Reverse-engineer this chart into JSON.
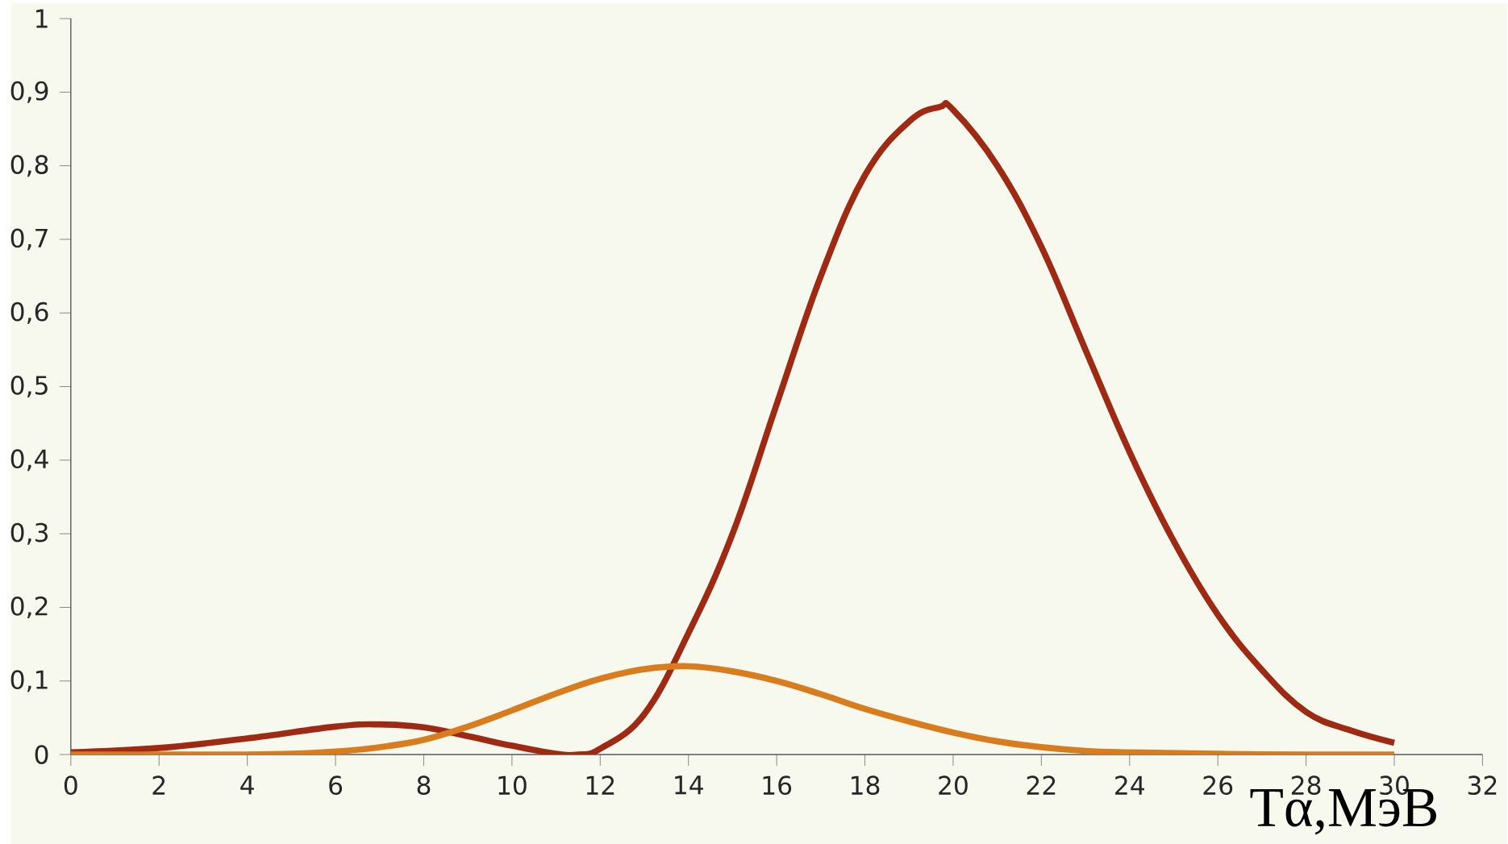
{
  "chart_data": {
    "type": "line",
    "xlabel": "Tα,МэВ",
    "xlim": [
      0,
      32
    ],
    "xticks": [
      0,
      2,
      4,
      6,
      8,
      10,
      12,
      14,
      16,
      18,
      20,
      22,
      24,
      26,
      28,
      30,
      32
    ],
    "ylim": [
      0,
      1
    ],
    "yticks": [
      0,
      {
        "value": 0.1,
        "label": "0,1"
      },
      {
        "value": 0.2,
        "label": "0,2"
      },
      {
        "value": 0.3,
        "label": "0,3"
      },
      {
        "value": 0.4,
        "label": "0,4"
      },
      {
        "value": 0.5,
        "label": "0,5"
      },
      {
        "value": 0.6,
        "label": "0,6"
      },
      {
        "value": 0.7,
        "label": "0,7"
      },
      {
        "value": 0.8,
        "label": "0,8"
      },
      {
        "value": 0.9,
        "label": "0,9"
      },
      1
    ],
    "grid": false,
    "marker": "none",
    "line_style": "solid",
    "series": [
      {
        "color": "#9e2a14",
        "x": [
          0,
          2,
          4,
          6,
          7,
          8,
          9,
          10,
          11,
          11.5,
          12,
          13,
          14,
          15,
          16,
          17,
          18,
          19,
          19.7,
          20,
          21,
          22,
          23,
          24,
          25,
          26,
          27,
          28,
          29,
          30
        ],
        "values": [
          0.003,
          0.009,
          0.022,
          0.038,
          0.041,
          0.037,
          0.025,
          0.012,
          0.001,
          0.0,
          0.008,
          0.055,
          0.165,
          0.3,
          0.476,
          0.65,
          0.787,
          0.86,
          0.88,
          0.876,
          0.8,
          0.69,
          0.55,
          0.411,
          0.29,
          0.19,
          0.115,
          0.058,
          0.033,
          0.016
        ]
      },
      {
        "color": "#d97c1e",
        "x": [
          0,
          2,
          4,
          5,
          6,
          7,
          8,
          9,
          10,
          11,
          12,
          13,
          14,
          15,
          16,
          17,
          18,
          19,
          20,
          21,
          22,
          23,
          24,
          26,
          28,
          30
        ],
        "values": [
          0,
          0,
          0,
          0.001,
          0.004,
          0.01,
          0.02,
          0.038,
          0.06,
          0.083,
          0.103,
          0.116,
          0.12,
          0.113,
          0.1,
          0.082,
          0.062,
          0.045,
          0.03,
          0.018,
          0.01,
          0.005,
          0.003,
          0.001,
          0,
          0
        ]
      }
    ]
  }
}
